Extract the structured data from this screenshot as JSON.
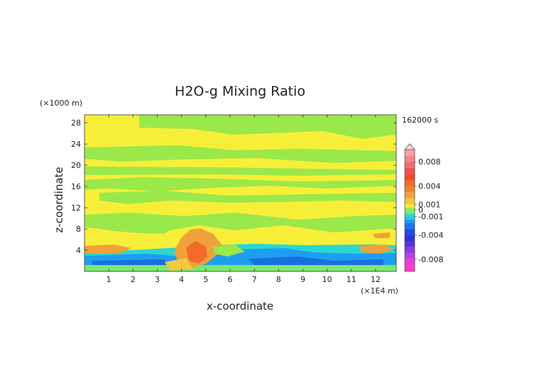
{
  "chart_data": {
    "type": "heatmap",
    "title": "H2O-g Mixing Ratio",
    "xlabel": "x-coordinate",
    "ylabel": "z-coordinate",
    "x_unit": "(×1E4 m)",
    "y_unit": "(×1000 m)",
    "time_label": "162000 s",
    "xlim": [
      0,
      12.85
    ],
    "ylim": [
      0,
      29.5
    ],
    "x_ticks": [
      "1",
      "2",
      "3",
      "4",
      "5",
      "6",
      "7",
      "8",
      "9",
      "10",
      "11",
      "12"
    ],
    "y_ticks": [
      "4",
      "8",
      "12",
      "16",
      "20",
      "24",
      "28"
    ],
    "colorbar": {
      "range": [
        -0.01,
        0.01
      ],
      "labels": [
        "0.008",
        "0.004",
        "0.001",
        "0",
        "-0.001",
        "-0.004",
        "-0.008"
      ]
    },
    "field_summary": {
      "background": "yellow (~0 to 0.001)",
      "bands": [
        {
          "desc": "green (slightly negative) band",
          "z_range": [
            27.5,
            29.5
          ]
        },
        {
          "desc": "green band",
          "z_range": [
            21.5,
            23.5
          ]
        },
        {
          "desc": "green band",
          "z_range": [
            15.5,
            17.5
          ]
        },
        {
          "desc": "green band",
          "z_range": [
            10.5,
            12.5
          ]
        },
        {
          "desc": "cyan/blue negative layer",
          "z_range": [
            0.5,
            4.5
          ]
        },
        {
          "desc": "orange positive plume",
          "x_range": [
            3.8,
            5.5
          ],
          "z_range": [
            3,
            8
          ]
        },
        {
          "desc": "orange positive layer west",
          "x_range": [
            0,
            1.5
          ],
          "z_range": [
            3.5,
            5
          ]
        }
      ]
    }
  }
}
